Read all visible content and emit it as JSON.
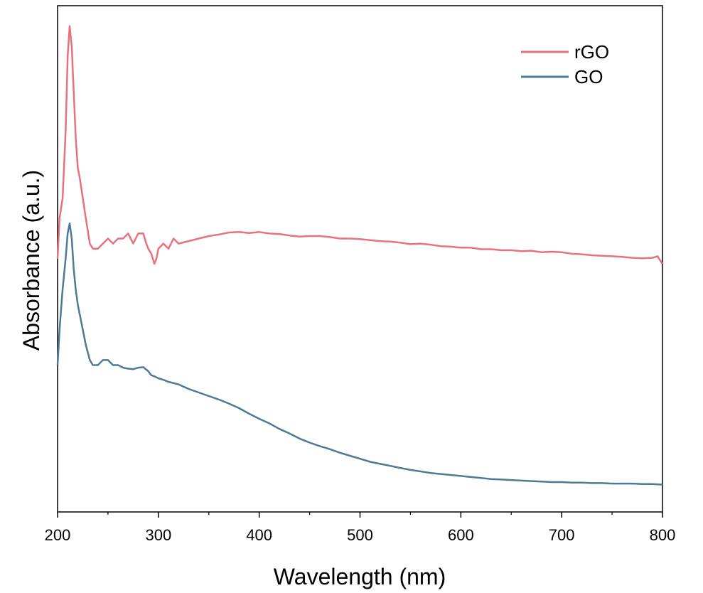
{
  "chart_data": {
    "type": "line",
    "title": "",
    "xlabel": "Wavelength (nm)",
    "ylabel": "Absorbance (a.u.)",
    "xlim": [
      200,
      800
    ],
    "ylim": [
      0,
      1
    ],
    "y_ticks_labeled": false,
    "x_ticks": [
      200,
      300,
      400,
      500,
      600,
      700,
      800
    ],
    "x_tick_labels": [
      "200",
      "300",
      "400",
      "500",
      "600",
      "700",
      "800"
    ],
    "grid": false,
    "legend_position": "top-right",
    "series": [
      {
        "name": "rGO",
        "color": "#e7727e",
        "x": [
          200,
          202,
          205,
          208,
          210,
          212,
          214,
          216,
          218,
          220,
          222,
          225,
          228,
          232,
          235,
          238,
          240,
          245,
          250,
          255,
          260,
          265,
          270,
          275,
          280,
          285,
          288,
          290,
          293,
          296,
          298,
          300,
          305,
          310,
          315,
          320,
          330,
          340,
          350,
          360,
          370,
          380,
          390,
          400,
          410,
          420,
          430,
          440,
          450,
          460,
          470,
          480,
          490,
          500,
          510,
          520,
          530,
          540,
          550,
          560,
          570,
          580,
          590,
          600,
          610,
          620,
          630,
          640,
          650,
          660,
          670,
          680,
          690,
          700,
          710,
          720,
          730,
          740,
          750,
          760,
          770,
          780,
          790,
          795,
          800
        ],
        "y": [
          0.5,
          0.58,
          0.62,
          0.75,
          0.9,
          0.96,
          0.92,
          0.83,
          0.74,
          0.68,
          0.66,
          0.62,
          0.58,
          0.53,
          0.52,
          0.52,
          0.52,
          0.53,
          0.54,
          0.53,
          0.54,
          0.54,
          0.55,
          0.53,
          0.55,
          0.55,
          0.53,
          0.52,
          0.51,
          0.49,
          0.5,
          0.52,
          0.53,
          0.52,
          0.54,
          0.53,
          0.535,
          0.54,
          0.545,
          0.548,
          0.552,
          0.553,
          0.551,
          0.553,
          0.55,
          0.549,
          0.546,
          0.544,
          0.545,
          0.545,
          0.543,
          0.54,
          0.54,
          0.539,
          0.537,
          0.535,
          0.534,
          0.532,
          0.529,
          0.53,
          0.528,
          0.525,
          0.524,
          0.522,
          0.522,
          0.519,
          0.519,
          0.517,
          0.517,
          0.515,
          0.516,
          0.513,
          0.514,
          0.513,
          0.51,
          0.509,
          0.507,
          0.506,
          0.505,
          0.504,
          0.502,
          0.501,
          0.502,
          0.505,
          0.49
        ]
      },
      {
        "name": "GO",
        "color": "#4d7a96",
        "x": [
          200,
          202,
          205,
          208,
          210,
          212,
          214,
          216,
          218,
          220,
          222,
          225,
          228,
          232,
          235,
          240,
          245,
          250,
          255,
          260,
          265,
          270,
          275,
          280,
          285,
          290,
          293,
          296,
          300,
          305,
          310,
          320,
          330,
          340,
          350,
          360,
          370,
          380,
          390,
          400,
          410,
          420,
          430,
          440,
          450,
          460,
          470,
          480,
          490,
          500,
          510,
          520,
          530,
          540,
          550,
          560,
          570,
          580,
          590,
          600,
          610,
          620,
          630,
          640,
          650,
          660,
          670,
          680,
          690,
          700,
          710,
          720,
          730,
          740,
          750,
          760,
          770,
          780,
          790,
          800
        ],
        "y": [
          0.29,
          0.36,
          0.44,
          0.5,
          0.55,
          0.57,
          0.54,
          0.48,
          0.44,
          0.41,
          0.39,
          0.36,
          0.33,
          0.3,
          0.29,
          0.29,
          0.3,
          0.3,
          0.29,
          0.29,
          0.285,
          0.283,
          0.282,
          0.285,
          0.286,
          0.278,
          0.27,
          0.268,
          0.264,
          0.261,
          0.257,
          0.252,
          0.243,
          0.236,
          0.229,
          0.222,
          0.214,
          0.205,
          0.194,
          0.184,
          0.175,
          0.164,
          0.155,
          0.145,
          0.137,
          0.13,
          0.124,
          0.117,
          0.111,
          0.105,
          0.099,
          0.095,
          0.091,
          0.087,
          0.083,
          0.08,
          0.077,
          0.075,
          0.073,
          0.071,
          0.069,
          0.067,
          0.065,
          0.064,
          0.063,
          0.062,
          0.061,
          0.06,
          0.059,
          0.059,
          0.058,
          0.058,
          0.057,
          0.057,
          0.056,
          0.056,
          0.056,
          0.055,
          0.055,
          0.054
        ]
      }
    ]
  }
}
